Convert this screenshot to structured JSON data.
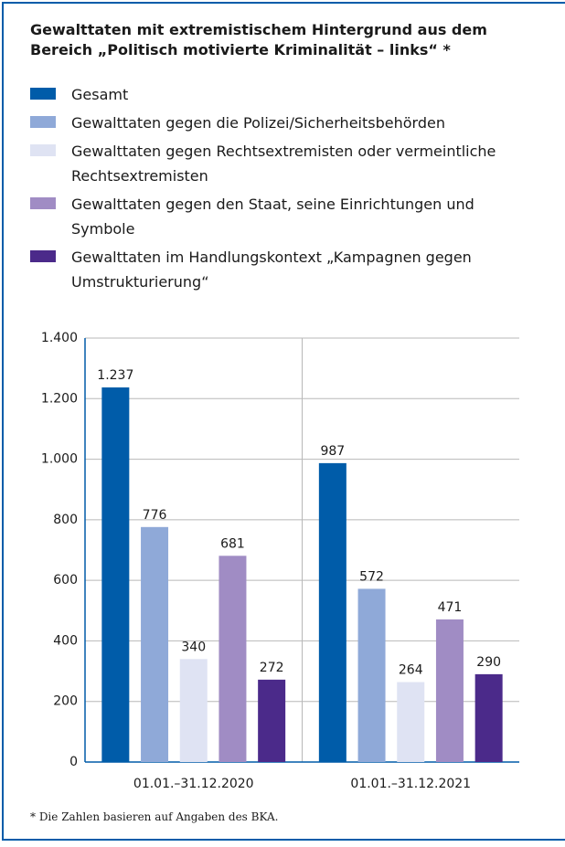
{
  "chart_data": {
    "type": "bar",
    "title": "Gewalttaten mit extremistischem Hintergrund aus dem Bereich „Politisch motivierte Kriminalität – links“ *",
    "categories": [
      "01.01.–31.12.2020",
      "01.01.–31.12.2021"
    ],
    "series": [
      {
        "name": "Gesamt",
        "color": "#005ca9",
        "values": [
          1237,
          987
        ],
        "value_labels": [
          "1.237",
          "987"
        ]
      },
      {
        "name": "Gewalttaten gegen die Polizei/Sicherheitsbehörden",
        "color": "#8fa9d8",
        "values": [
          776,
          572
        ]
      },
      {
        "name": "Gewalttaten gegen Rechtsextremisten oder vermeintliche Rechtsextremisten",
        "color": "#dfe3f3",
        "values": [
          340,
          264
        ]
      },
      {
        "name": "Gewalttaten gegen den Staat, seine Einrichtungen und Symbole",
        "color": "#a08cc4",
        "values": [
          681,
          471
        ]
      },
      {
        "name": "Gewalttaten im Handlungskontext „Kampagnen gegen Umstrukturierung“",
        "color": "#4b2a8a",
        "values": [
          272,
          290
        ]
      }
    ],
    "ylim": [
      0,
      1400
    ],
    "yticks": [
      0,
      200,
      400,
      600,
      800,
      {
        "value": 1000,
        "label": "1.000"
      },
      {
        "value": 1200,
        "label": "1.200"
      },
      {
        "value": 1400,
        "label": "1.400"
      }
    ],
    "grid": true,
    "footnote": "* Die Zahlen basieren auf Angaben des BKA."
  }
}
